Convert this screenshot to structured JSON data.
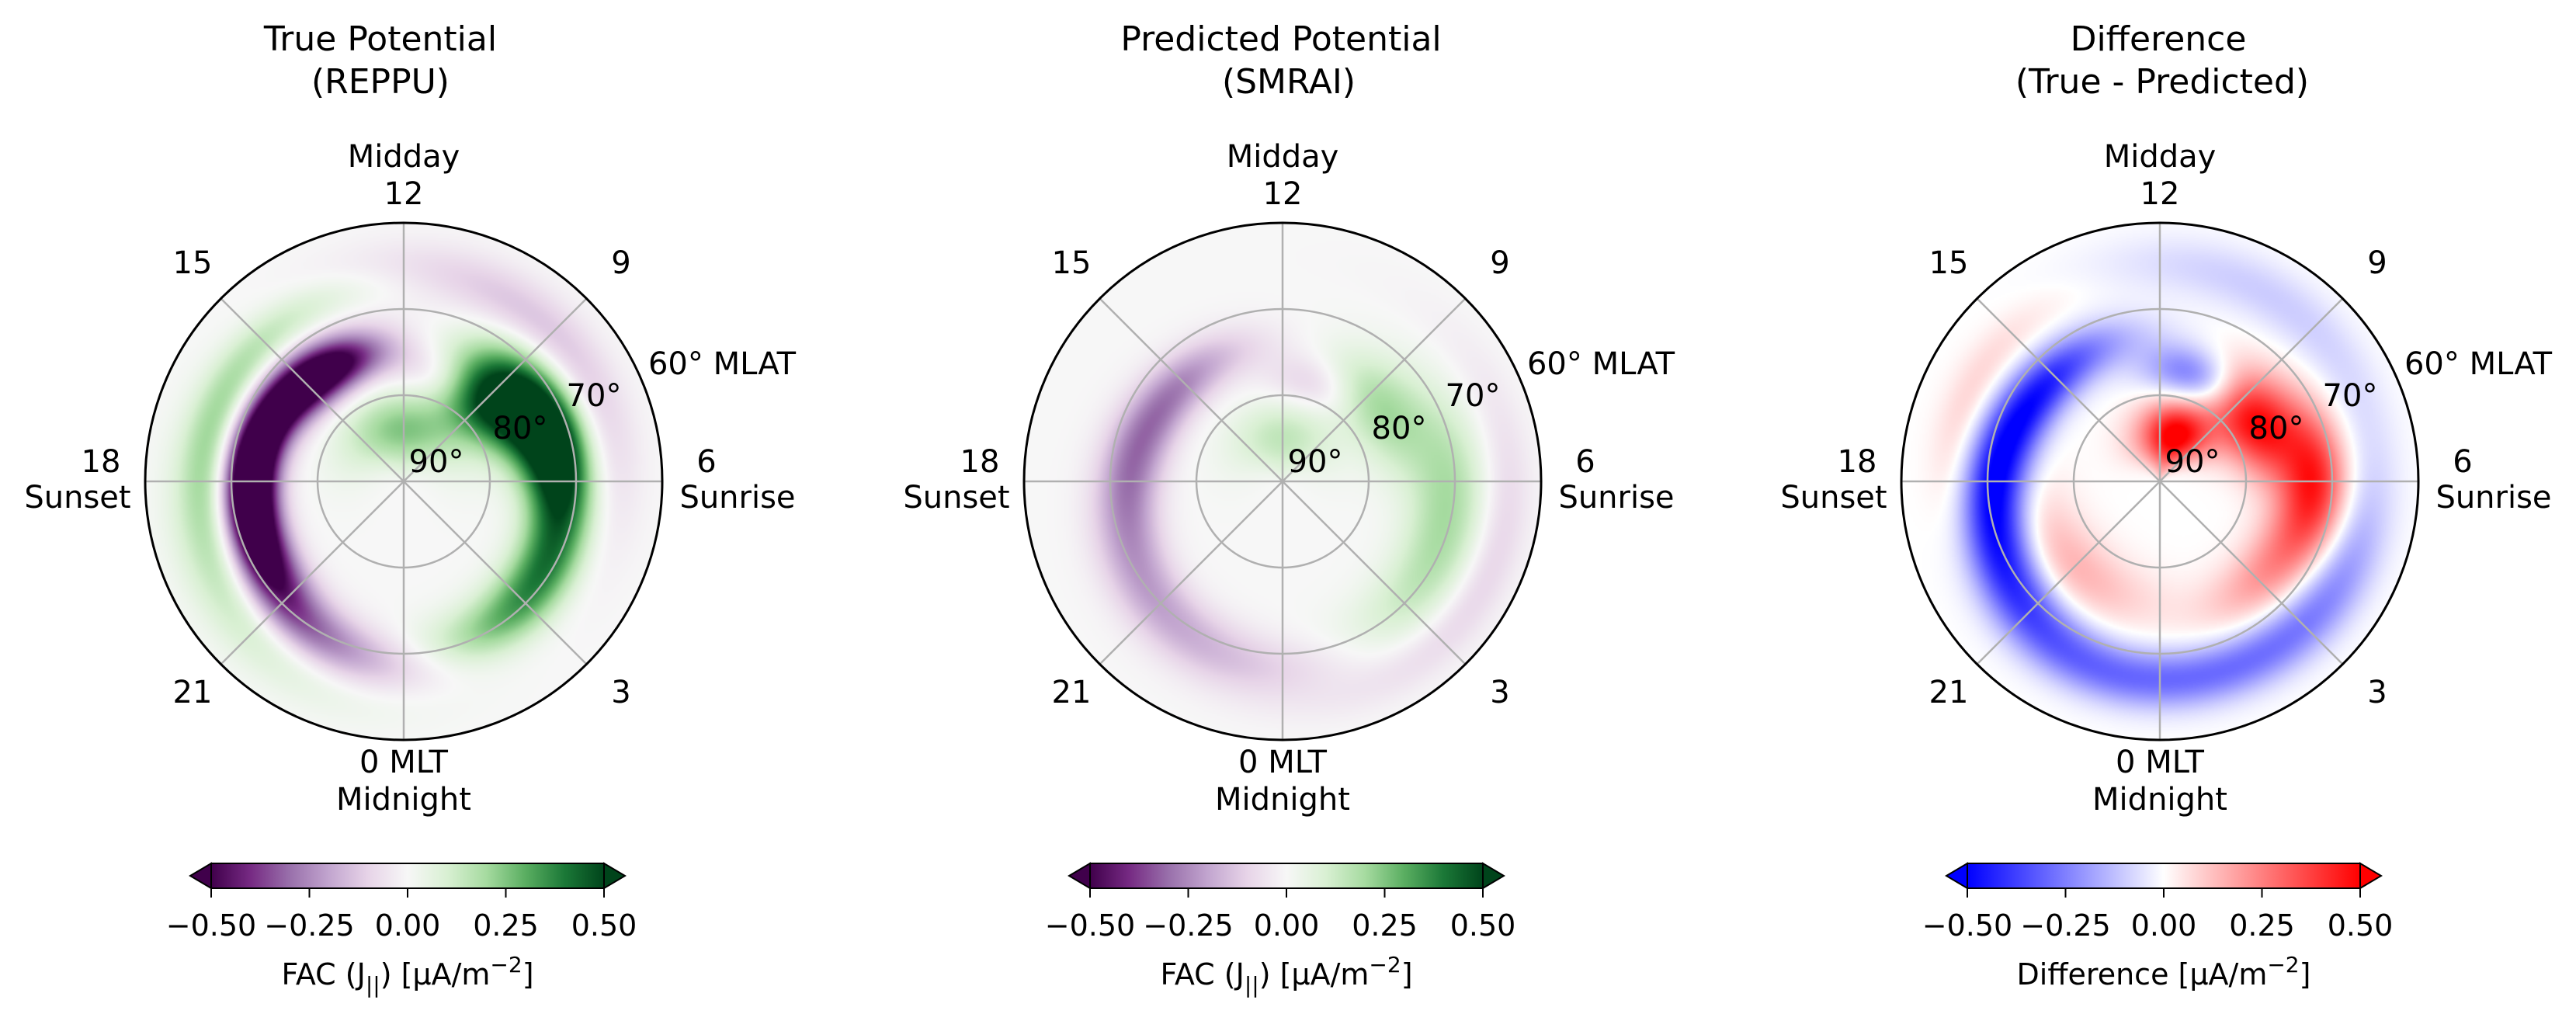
{
  "chart_data": [
    {
      "type": "heatmap",
      "projection": "polar",
      "title": [
        "True Potential",
        "(REPPU)"
      ],
      "hour_labels": {
        "h0": "0 MLT",
        "h0_sub": "Midnight",
        "h3": "3",
        "h6": "6",
        "h6_sub": "Sunrise",
        "h9": "9",
        "h12_top": "Midday",
        "h12": "12",
        "h15": "15",
        "h18": "18",
        "h18_sub": "Sunset",
        "h21": "21"
      },
      "radial_labels": [
        "90°",
        "80°",
        "70°",
        "60° MLAT"
      ],
      "colormap": "PRGn",
      "colorbar": {
        "ticks": [
          "−0.50",
          "−0.25",
          "0.00",
          "0.25",
          "0.50"
        ],
        "label": "FAC (J",
        "label_sub": "||",
        "label_mid": ") [µA/m",
        "label_sup": "−2",
        "label_end": "]",
        "range": [
          -0.5,
          0.5
        ],
        "extend": "both"
      },
      "blobs": [
        {
          "mlt": 16.4,
          "lat": 73,
          "value": -0.55,
          "dmlt": 1.8,
          "dlat": 2.0
        },
        {
          "mlt": 14.4,
          "lat": 75,
          "value": -0.5,
          "dmlt": 1.3,
          "dlat": 2.0
        },
        {
          "mlt": 18.2,
          "lat": 72,
          "value": -0.4,
          "dmlt": 1.4,
          "dlat": 2.0
        },
        {
          "mlt": 19.6,
          "lat": 72,
          "value": -0.3,
          "dmlt": 1.3,
          "dlat": 2.2
        },
        {
          "mlt": 21.2,
          "lat": 70,
          "value": -0.25,
          "dmlt": 1.5,
          "dlat": 2.2
        },
        {
          "mlt": 23.2,
          "lat": 68,
          "value": -0.15,
          "dmlt": 1.8,
          "dlat": 2.4
        },
        {
          "mlt": 10.6,
          "lat": 77,
          "value": -0.15,
          "dmlt": 1.1,
          "dlat": 2.2
        },
        {
          "mlt": 7.8,
          "lat": 73,
          "value": 0.55,
          "dmlt": 1.3,
          "dlat": 3.0
        },
        {
          "mlt": 9.0,
          "lat": 77,
          "value": 0.45,
          "dmlt": 1.3,
          "dlat": 3.0
        },
        {
          "mlt": 6.2,
          "lat": 72,
          "value": 0.35,
          "dmlt": 1.2,
          "dlat": 2.6
        },
        {
          "mlt": 4.0,
          "lat": 71,
          "value": 0.3,
          "dmlt": 1.3,
          "dlat": 2.6
        },
        {
          "mlt": 2.0,
          "lat": 70,
          "value": 0.2,
          "dmlt": 1.4,
          "dlat": 2.6
        },
        {
          "mlt": 12.0,
          "lat": 84,
          "value": 0.25,
          "dmlt": 3.0,
          "dlat": 3.0
        },
        {
          "mlt": 16.5,
          "lat": 67,
          "value": 0.2,
          "dmlt": 3.0,
          "dlat": 2.0
        },
        {
          "mlt": 20.5,
          "lat": 65,
          "value": 0.1,
          "dmlt": 2.5,
          "dlat": 2.5
        },
        {
          "mlt": 9.5,
          "lat": 66,
          "value": -0.15,
          "dmlt": 3.0,
          "dlat": 2.5
        }
      ]
    },
    {
      "type": "heatmap",
      "projection": "polar",
      "title": [
        "Predicted Potential",
        "(SMRAI)"
      ],
      "hour_labels": {
        "h0": "0 MLT",
        "h0_sub": "Midnight",
        "h3": "3",
        "h6": "6",
        "h6_sub": "Sunrise",
        "h9": "9",
        "h12_top": "Midday",
        "h12": "12",
        "h15": "15",
        "h18": "18",
        "h18_sub": "Sunset",
        "h21": "21"
      },
      "radial_labels": [
        "90°",
        "80°",
        "70°",
        "60° MLAT"
      ],
      "colormap": "PRGn",
      "colorbar": {
        "ticks": [
          "−0.50",
          "−0.25",
          "0.00",
          "0.25",
          "0.50"
        ],
        "label": "FAC (J",
        "label_sub": "||",
        "label_mid": ") [µA/m",
        "label_sup": "−2",
        "label_end": "]",
        "range": [
          -0.5,
          0.5
        ],
        "extend": "both"
      },
      "blobs": [
        {
          "mlt": 15.5,
          "lat": 74,
          "value": -0.25,
          "dmlt": 1.8,
          "dlat": 2.2
        },
        {
          "mlt": 18.0,
          "lat": 72,
          "value": -0.2,
          "dmlt": 1.6,
          "dlat": 2.2
        },
        {
          "mlt": 20.5,
          "lat": 70,
          "value": -0.15,
          "dmlt": 1.8,
          "dlat": 2.4
        },
        {
          "mlt": 23.0,
          "lat": 68,
          "value": -0.1,
          "dmlt": 2.0,
          "dlat": 2.5
        },
        {
          "mlt": 10.8,
          "lat": 78,
          "value": -0.12,
          "dmlt": 1.2,
          "dlat": 2.2
        },
        {
          "mlt": 8.5,
          "lat": 76,
          "value": 0.2,
          "dmlt": 1.5,
          "dlat": 3.0
        },
        {
          "mlt": 6.0,
          "lat": 71,
          "value": 0.15,
          "dmlt": 1.6,
          "dlat": 3.0
        },
        {
          "mlt": 3.5,
          "lat": 70,
          "value": 0.12,
          "dmlt": 1.6,
          "dlat": 3.0
        },
        {
          "mlt": 12.0,
          "lat": 85,
          "value": 0.15,
          "dmlt": 3.0,
          "dlat": 3.0
        },
        {
          "mlt": 4.5,
          "lat": 64,
          "value": -0.1,
          "dmlt": 2.5,
          "dlat": 2.0
        }
      ]
    },
    {
      "type": "heatmap",
      "projection": "polar",
      "title": [
        "Difference",
        "(True - Predicted)"
      ],
      "hour_labels": {
        "h0": "0 MLT",
        "h0_sub": "Midnight",
        "h3": "3",
        "h6": "6",
        "h6_sub": "Sunrise",
        "h9": "9",
        "h12_top": "Midday",
        "h12": "12",
        "h15": "15",
        "h18": "18",
        "h18_sub": "Sunset",
        "h21": "21"
      },
      "radial_labels": [
        "90°",
        "80°",
        "70°",
        "60° MLAT"
      ],
      "colormap": "bwr",
      "colorbar": {
        "ticks": [
          "−0.50",
          "−0.25",
          "0.00",
          "0.25",
          "0.50"
        ],
        "label": "Difference [µA/m",
        "label_sup": "−2",
        "label_end": "]",
        "range": [
          -0.5,
          0.5
        ],
        "extend": "both"
      },
      "blobs": [
        {
          "mlt": 15.5,
          "lat": 73,
          "value": -0.4,
          "dmlt": 1.8,
          "dlat": 2.2
        },
        {
          "mlt": 18.0,
          "lat": 71,
          "value": -0.35,
          "dmlt": 1.6,
          "dlat": 2.2
        },
        {
          "mlt": 20.0,
          "lat": 69,
          "value": -0.3,
          "dmlt": 1.6,
          "dlat": 2.4
        },
        {
          "mlt": 22.5,
          "lat": 67,
          "value": -0.2,
          "dmlt": 1.8,
          "dlat": 2.4
        },
        {
          "mlt": 1.5,
          "lat": 67,
          "value": -0.2,
          "dmlt": 1.8,
          "dlat": 2.4
        },
        {
          "mlt": 4.0,
          "lat": 66,
          "value": -0.15,
          "dmlt": 1.6,
          "dlat": 2.4
        },
        {
          "mlt": 10.8,
          "lat": 77,
          "value": -0.3,
          "dmlt": 1.2,
          "dlat": 2.2
        },
        {
          "mlt": 8.2,
          "lat": 77,
          "value": 0.5,
          "dmlt": 1.4,
          "dlat": 3.0
        },
        {
          "mlt": 10.5,
          "lat": 84,
          "value": 0.45,
          "dmlt": 1.6,
          "dlat": 2.6
        },
        {
          "mlt": 6.0,
          "lat": 72,
          "value": 0.4,
          "dmlt": 1.3,
          "dlat": 2.6
        },
        {
          "mlt": 12.5,
          "lat": 86,
          "value": 0.2,
          "dmlt": 2.0,
          "dlat": 2.5
        },
        {
          "mlt": 3.5,
          "lat": 74,
          "value": 0.2,
          "dmlt": 1.5,
          "dlat": 2.6
        },
        {
          "mlt": 21.0,
          "lat": 76,
          "value": 0.15,
          "dmlt": 2.0,
          "dlat": 3.0
        },
        {
          "mlt": 16.5,
          "lat": 66,
          "value": 0.1,
          "dmlt": 2.0,
          "dlat": 2.0
        },
        {
          "mlt": 10.0,
          "lat": 65,
          "value": -0.1,
          "dmlt": 2.5,
          "dlat": 2.5
        }
      ]
    }
  ]
}
